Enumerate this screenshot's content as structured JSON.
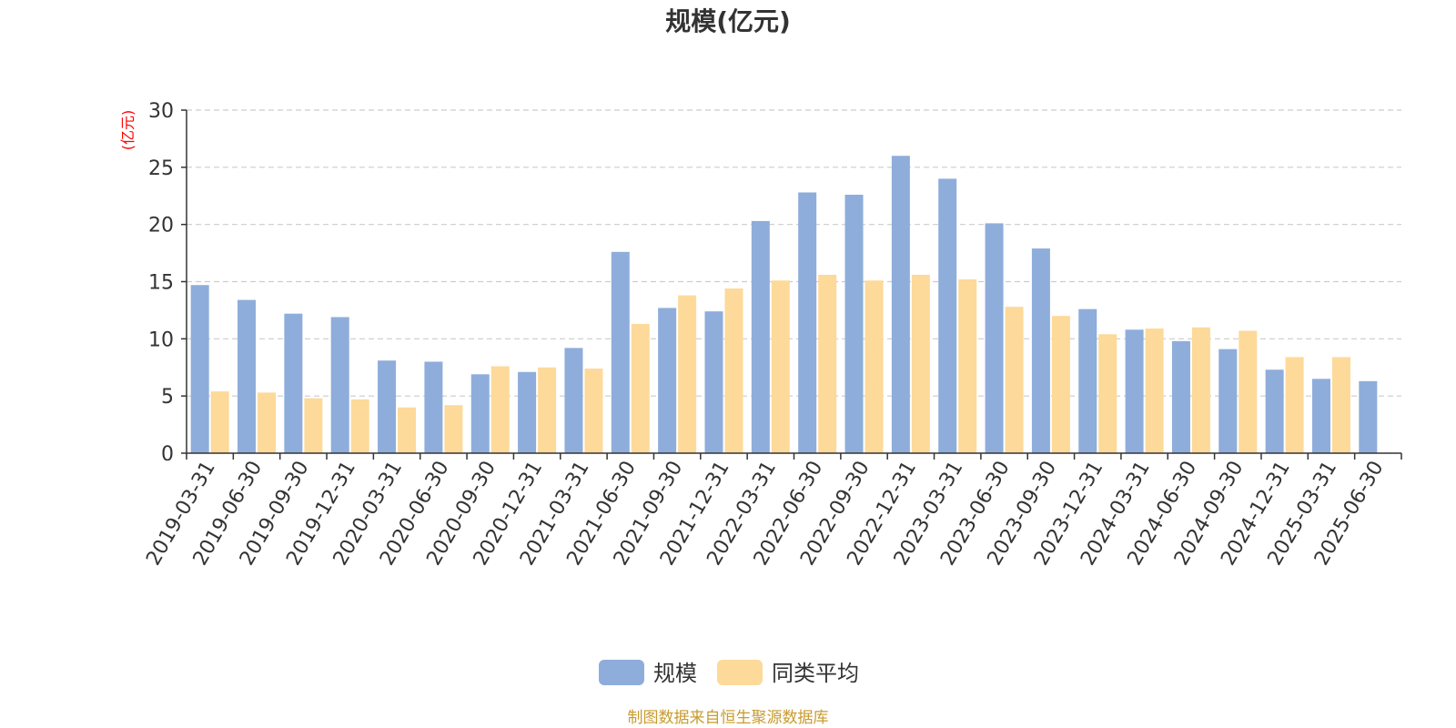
{
  "chart_data": {
    "type": "bar",
    "title": "规模(亿元)",
    "ylabel": "(亿元)",
    "xlabel": "",
    "ylim": [
      0,
      30
    ],
    "yticks": [
      0,
      5,
      10,
      15,
      20,
      25,
      30
    ],
    "grid": true,
    "legend_position": "bottom",
    "categories": [
      "2019-03-31",
      "2019-06-30",
      "2019-09-30",
      "2019-12-31",
      "2020-03-31",
      "2020-06-30",
      "2020-09-30",
      "2020-12-31",
      "2021-03-31",
      "2021-06-30",
      "2021-09-30",
      "2021-12-31",
      "2022-03-31",
      "2022-06-30",
      "2022-09-30",
      "2022-12-31",
      "2023-03-31",
      "2023-06-30",
      "2023-09-30",
      "2023-12-31",
      "2024-03-31",
      "2024-06-30",
      "2024-09-30",
      "2024-12-31",
      "2025-03-31",
      "2025-06-30"
    ],
    "series": [
      {
        "name": "规模",
        "color": "#8eaddb",
        "values": [
          14.7,
          13.4,
          12.2,
          11.9,
          8.1,
          8.0,
          6.9,
          7.1,
          9.2,
          17.6,
          12.7,
          12.4,
          20.3,
          22.8,
          22.6,
          26.0,
          24.0,
          20.1,
          17.9,
          12.6,
          10.8,
          9.8,
          9.1,
          7.3,
          6.5,
          6.3
        ]
      },
      {
        "name": "同类平均",
        "color": "#fdd99a",
        "values": [
          5.4,
          5.3,
          4.8,
          4.7,
          4.0,
          4.2,
          7.6,
          7.5,
          7.4,
          11.3,
          13.8,
          14.4,
          15.1,
          15.6,
          15.1,
          15.6,
          15.2,
          12.8,
          12.0,
          10.4,
          10.9,
          11.0,
          10.7,
          8.4,
          8.4,
          null
        ]
      }
    ]
  },
  "source_text": "制图数据来自恒生聚源数据库",
  "colors": {
    "axis_label_red": "#ff0000",
    "source_gold": "#c89b2e",
    "grid": "#cccccc"
  }
}
